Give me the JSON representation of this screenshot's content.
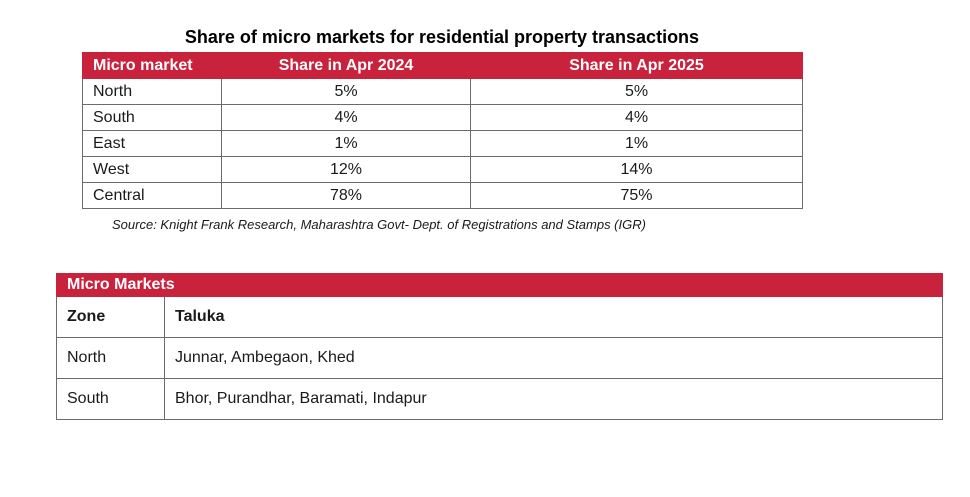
{
  "table1": {
    "title": "Share of micro markets for residential property transactions",
    "headers": [
      "Micro market",
      "Share in Apr 2024",
      "Share in Apr 2025"
    ],
    "rows": [
      [
        "North",
        "5%",
        "5%"
      ],
      [
        "South",
        "4%",
        "4%"
      ],
      [
        "East",
        "1%",
        "1%"
      ],
      [
        "West",
        "12%",
        "14%"
      ],
      [
        "Central",
        "78%",
        "75%"
      ]
    ],
    "source": "Source: Knight Frank Research, Maharashtra Govt- Dept. of Registrations and Stamps (IGR)"
  },
  "table2": {
    "title": "Micro Markets",
    "headers": [
      "Zone",
      "Taluka"
    ],
    "rows": [
      [
        "North",
        "Junnar, Ambegaon, Khed"
      ],
      [
        "South",
        "Bhor, Purandhar, Baramati, Indapur"
      ]
    ]
  },
  "colors": {
    "header_bg": "#c8223c",
    "header_text": "#ffffff",
    "border": "#6b6b6b"
  }
}
